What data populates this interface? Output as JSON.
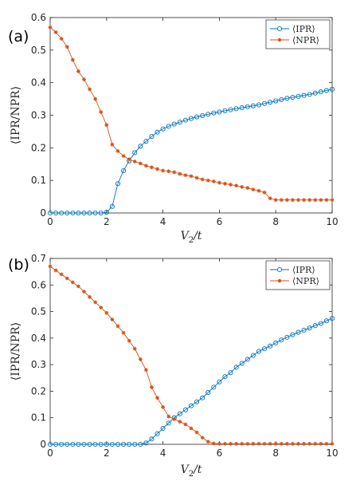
{
  "chart_data": [
    {
      "type": "line",
      "panel_label": "(a)",
      "xlabel_base": "V",
      "xlabel_sub": "2",
      "xlabel_tail": "/t",
      "ylabel": "⟨IPR/NPR⟩",
      "xlim": [
        0,
        10
      ],
      "ylim": [
        0,
        0.6
      ],
      "xticks": [
        "0",
        "2",
        "4",
        "6",
        "8",
        "10"
      ],
      "yticks": [
        "0",
        "0.1",
        "0.2",
        "0.3",
        "0.4",
        "0.5",
        "0.6"
      ],
      "grid": false,
      "legend_position": "top-right",
      "series": [
        {
          "name": "⟨IPR⟩",
          "color": "#0072BD",
          "marker": "circle",
          "x": [
            0,
            0.2,
            0.4,
            0.6,
            0.8,
            1.0,
            1.2,
            1.4,
            1.6,
            1.8,
            2.0,
            2.2,
            2.4,
            2.6,
            2.8,
            3.0,
            3.2,
            3.4,
            3.6,
            3.8,
            4.0,
            4.2,
            4.4,
            4.6,
            4.8,
            5.0,
            5.2,
            5.4,
            5.6,
            5.8,
            6.0,
            6.2,
            6.4,
            6.6,
            6.8,
            7.0,
            7.2,
            7.4,
            7.6,
            7.8,
            8.0,
            8.2,
            8.4,
            8.6,
            8.8,
            9.0,
            9.2,
            9.4,
            9.6,
            9.8,
            10.0
          ],
          "y": [
            0,
            0,
            0,
            0,
            0,
            0,
            0,
            0,
            0,
            0,
            0.002,
            0.02,
            0.09,
            0.13,
            0.16,
            0.185,
            0.205,
            0.22,
            0.235,
            0.248,
            0.258,
            0.266,
            0.273,
            0.279,
            0.285,
            0.29,
            0.295,
            0.299,
            0.303,
            0.307,
            0.31,
            0.314,
            0.317,
            0.32,
            0.323,
            0.326,
            0.329,
            0.332,
            0.336,
            0.34,
            0.344,
            0.348,
            0.352,
            0.355,
            0.358,
            0.361,
            0.364,
            0.368,
            0.372,
            0.376,
            0.38
          ]
        },
        {
          "name": "⟨NPR⟩",
          "color": "#D95319",
          "marker": "asterisk",
          "x": [
            0,
            0.2,
            0.4,
            0.6,
            0.8,
            1.0,
            1.2,
            1.4,
            1.6,
            1.8,
            2.0,
            2.2,
            2.4,
            2.6,
            2.8,
            3.0,
            3.2,
            3.4,
            3.6,
            3.8,
            4.0,
            4.2,
            4.4,
            4.6,
            4.8,
            5.0,
            5.2,
            5.4,
            5.6,
            5.8,
            6.0,
            6.2,
            6.4,
            6.6,
            6.8,
            7.0,
            7.2,
            7.4,
            7.6,
            7.8,
            8.0,
            8.2,
            8.4,
            8.6,
            8.8,
            9.0,
            9.2,
            9.4,
            9.6,
            9.8,
            10.0
          ],
          "y": [
            0.57,
            0.555,
            0.535,
            0.51,
            0.47,
            0.435,
            0.41,
            0.38,
            0.35,
            0.31,
            0.27,
            0.21,
            0.19,
            0.175,
            0.165,
            0.158,
            0.152,
            0.145,
            0.14,
            0.135,
            0.13,
            0.128,
            0.125,
            0.12,
            0.116,
            0.113,
            0.108,
            0.103,
            0.1,
            0.097,
            0.093,
            0.09,
            0.087,
            0.084,
            0.08,
            0.077,
            0.072,
            0.068,
            0.063,
            0.045,
            0.04,
            0.04,
            0.04,
            0.04,
            0.04,
            0.04,
            0.04,
            0.04,
            0.04,
            0.04,
            0.04
          ]
        }
      ]
    },
    {
      "type": "line",
      "panel_label": "(b)",
      "xlabel_base": "V",
      "xlabel_sub": "2",
      "xlabel_tail": "/t",
      "ylabel": "⟨IPR/NPR⟩",
      "xlim": [
        0,
        10
      ],
      "ylim": [
        0,
        0.7
      ],
      "xticks": [
        "0",
        "2",
        "4",
        "6",
        "8",
        "10"
      ],
      "yticks": [
        "0",
        "0.1",
        "0.2",
        "0.3",
        "0.4",
        "0.5",
        "0.6",
        "0.7"
      ],
      "grid": false,
      "legend_position": "top-right",
      "series": [
        {
          "name": "⟨IPR⟩",
          "color": "#0072BD",
          "marker": "circle",
          "x": [
            0,
            0.2,
            0.4,
            0.6,
            0.8,
            1.0,
            1.2,
            1.4,
            1.6,
            1.8,
            2.0,
            2.2,
            2.4,
            2.6,
            2.8,
            3.0,
            3.2,
            3.4,
            3.6,
            3.8,
            4.0,
            4.2,
            4.4,
            4.6,
            4.8,
            5.0,
            5.2,
            5.4,
            5.6,
            5.8,
            6.0,
            6.2,
            6.4,
            6.6,
            6.8,
            7.0,
            7.2,
            7.4,
            7.6,
            7.8,
            8.0,
            8.2,
            8.4,
            8.6,
            8.8,
            9.0,
            9.2,
            9.4,
            9.6,
            9.8,
            10.0
          ],
          "y": [
            0,
            0,
            0,
            0,
            0,
            0,
            0,
            0,
            0,
            0,
            0,
            0,
            0,
            0,
            0,
            0,
            0,
            0.005,
            0.02,
            0.04,
            0.06,
            0.08,
            0.1,
            0.115,
            0.13,
            0.145,
            0.16,
            0.175,
            0.195,
            0.215,
            0.235,
            0.255,
            0.27,
            0.29,
            0.305,
            0.32,
            0.335,
            0.35,
            0.36,
            0.37,
            0.382,
            0.393,
            0.403,
            0.413,
            0.422,
            0.43,
            0.438,
            0.447,
            0.455,
            0.465,
            0.474
          ]
        },
        {
          "name": "⟨NPR⟩",
          "color": "#D95319",
          "marker": "asterisk",
          "x": [
            0,
            0.2,
            0.4,
            0.6,
            0.8,
            1.0,
            1.2,
            1.4,
            1.6,
            1.8,
            2.0,
            2.2,
            2.4,
            2.6,
            2.8,
            3.0,
            3.2,
            3.4,
            3.6,
            3.8,
            4.0,
            4.2,
            4.4,
            4.6,
            4.8,
            5.0,
            5.2,
            5.4,
            5.6,
            5.8,
            6.0,
            6.2,
            6.4,
            6.6,
            6.8,
            7.0,
            7.2,
            7.4,
            7.6,
            7.8,
            8.0,
            8.2,
            8.4,
            8.6,
            8.8,
            9.0,
            9.2,
            9.4,
            9.6,
            9.8,
            10.0
          ],
          "y": [
            0.67,
            0.655,
            0.64,
            0.625,
            0.61,
            0.595,
            0.575,
            0.555,
            0.535,
            0.515,
            0.495,
            0.47,
            0.445,
            0.42,
            0.39,
            0.36,
            0.32,
            0.28,
            0.215,
            0.175,
            0.14,
            0.105,
            0.095,
            0.085,
            0.075,
            0.06,
            0.045,
            0.025,
            0.01,
            0.003,
            0.002,
            0.002,
            0.002,
            0.002,
            0.002,
            0.002,
            0.002,
            0.002,
            0.002,
            0.002,
            0.002,
            0.002,
            0.002,
            0.002,
            0.002,
            0.002,
            0.002,
            0.002,
            0.002,
            0.002,
            0.002
          ]
        }
      ]
    }
  ]
}
